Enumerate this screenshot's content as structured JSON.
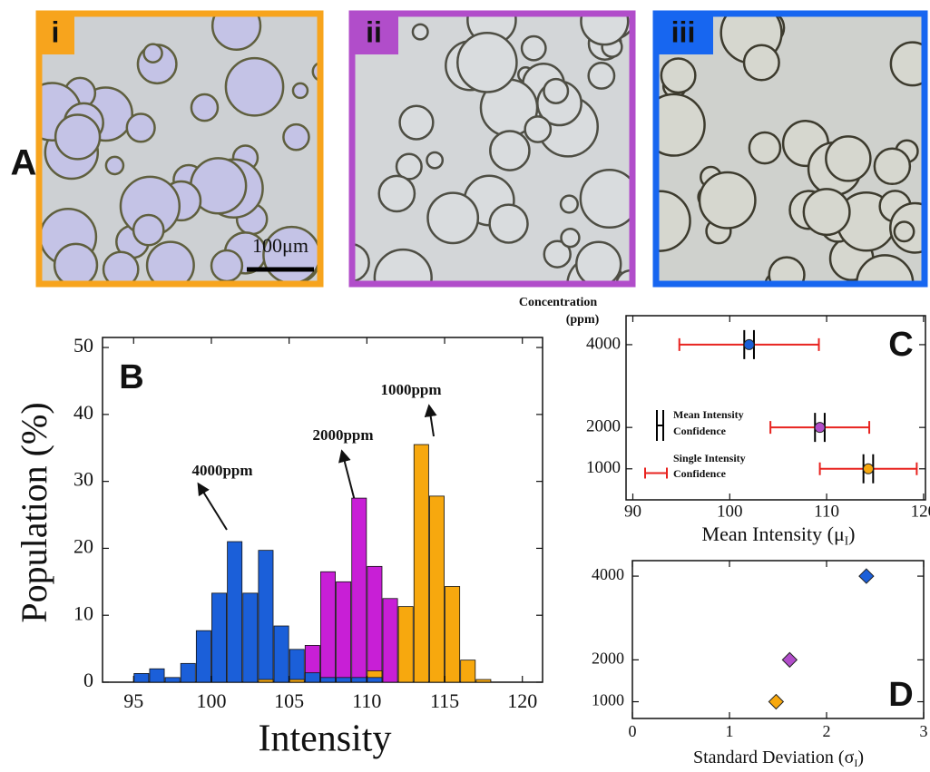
{
  "panel_a": {
    "label": "A",
    "scale_bar": "100μm",
    "images": [
      {
        "label": "i",
        "color": "#f7a41d"
      },
      {
        "label": "ii",
        "color": "#b14dca"
      },
      {
        "label": "iii",
        "color": "#1766f0"
      }
    ]
  },
  "chart_data": [
    {
      "type": "histogram",
      "panel_label": "B",
      "x_label": "Intensity",
      "y_label": "Population (%)",
      "bins": [
        95,
        96,
        97,
        98,
        99,
        100,
        101,
        102,
        103,
        104,
        105,
        106,
        107,
        108,
        109,
        110,
        111,
        112,
        113,
        114,
        115,
        116,
        117,
        118
      ],
      "series": [
        {
          "color": "#1b5fd9",
          "values": [
            1.3,
            2.0,
            0.7,
            2.8,
            7.7,
            13.3,
            21,
            13.3,
            19.7,
            8.4,
            4.9,
            1.4,
            0.7,
            0.7,
            0.7,
            0.7,
            0,
            0,
            0,
            0,
            0,
            0,
            0
          ]
        },
        {
          "color": "#c81fd6",
          "values": [
            0,
            0,
            0,
            0,
            0,
            0,
            0,
            0,
            0,
            0,
            0,
            5.5,
            16.5,
            15,
            27.5,
            17.3,
            12.5,
            0,
            0,
            0,
            0,
            0,
            0
          ]
        },
        {
          "color": "#f7a80e",
          "values": [
            0,
            0,
            0,
            0,
            0,
            0,
            0,
            0,
            0.4,
            0,
            0.4,
            0,
            0,
            0,
            0,
            1.7,
            0,
            11.3,
            35.5,
            27.8,
            14.3,
            3.3,
            0.4
          ]
        }
      ],
      "annotations": [
        "4000ppm",
        "2000ppm",
        "1000ppm"
      ],
      "xlim": [
        93,
        121.3
      ],
      "xticks": [
        95,
        100,
        105,
        110,
        115,
        120
      ],
      "ylim": [
        0,
        51.5
      ],
      "yticks": [
        0,
        10,
        20,
        30,
        40,
        50
      ]
    },
    {
      "type": "scatter",
      "panel_label": "C",
      "y_label": [
        "Concentration",
        "(ppm)"
      ],
      "x_label": [
        "Mean Intensity (μ",
        "I",
        ")"
      ],
      "x": [
        102,
        109.3,
        114.3
      ],
      "y": [
        4000,
        2000,
        1000
      ],
      "colors": [
        "#1b5fd9",
        "#b14dca",
        "#f7a80e"
      ],
      "marker": "circle",
      "mean_confidence": [
        0.5,
        0.5,
        0.5
      ],
      "single_confidence": [
        7.2,
        5.1,
        5.0
      ],
      "legend": [
        {
          "label": [
            "Mean Intensity",
            "Confidence"
          ],
          "color": "#000000"
        },
        {
          "label": [
            "Single Intensity",
            "Confidence"
          ],
          "color": "#e8231f"
        }
      ],
      "xlim": [
        89.3,
        120.2
      ],
      "xticks": [
        90,
        100,
        110,
        120
      ],
      "ylim": [
        250,
        4700
      ],
      "yticks": [
        1000,
        2000,
        4000
      ]
    },
    {
      "type": "scatter",
      "panel_label": "D",
      "x_label": [
        "Standard Deviation (σ",
        "I",
        ")"
      ],
      "x": [
        1.48,
        1.62,
        2.41
      ],
      "y": [
        1000,
        2000,
        4000
      ],
      "colors": [
        "#f7a80e",
        "#b14dca",
        "#1b5fd9"
      ],
      "marker": "diamond",
      "xlim": [
        0,
        3
      ],
      "xticks": [
        0,
        1,
        2,
        3
      ],
      "ylim": [
        600,
        4370
      ],
      "yticks": [
        1000,
        2000,
        4000
      ]
    }
  ]
}
